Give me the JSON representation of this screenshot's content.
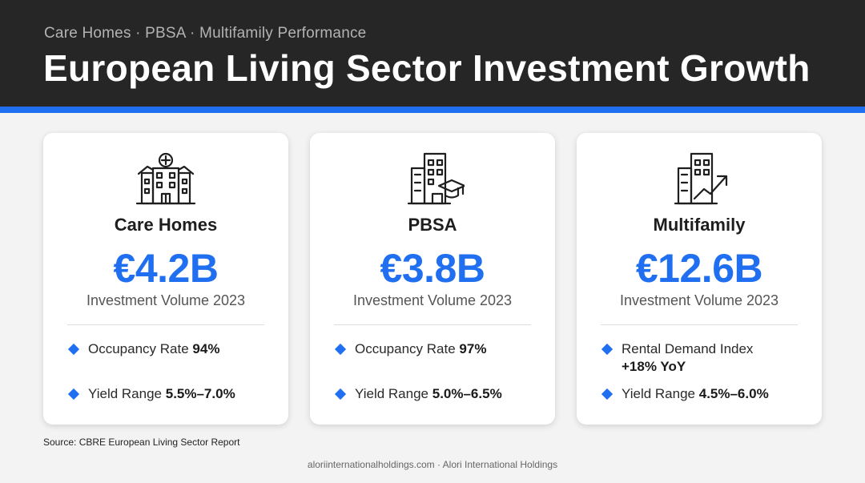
{
  "header": {
    "subtitle": "Care Homes · PBSA · Multifamily Performance",
    "title": "European Living Sector Investment Growth"
  },
  "colors": {
    "accent": "#1f6ff0",
    "header_bg": "#262626"
  },
  "cards": [
    {
      "icon": "care-home-building-icon",
      "name": "Care Homes",
      "value": "€4.2B",
      "caption": "Investment Volume 2023",
      "metrics": [
        {
          "label": "Occupancy Rate",
          "value": "94%"
        },
        {
          "label": "Yield Range",
          "value": "5.5%–7.0%"
        }
      ]
    },
    {
      "icon": "student-housing-building-icon",
      "name": "PBSA",
      "value": "€3.8B",
      "caption": "Investment Volume 2023",
      "metrics": [
        {
          "label": "Occupancy Rate",
          "value": "97%"
        },
        {
          "label": "Yield Range",
          "value": "5.0%–6.5%"
        }
      ]
    },
    {
      "icon": "multifamily-building-growth-icon",
      "name": "Multifamily",
      "value": "€12.6B",
      "caption": "Investment Volume 2023",
      "metrics": [
        {
          "label": "Rental Demand Index",
          "value": "+18% YoY"
        },
        {
          "label": "Yield Range",
          "value": "4.5%–6.0%"
        }
      ]
    }
  ],
  "source": "Source: CBRE European Living Sector Report",
  "footer": "aloriinternationalholdings.com · Alori International Holdings"
}
